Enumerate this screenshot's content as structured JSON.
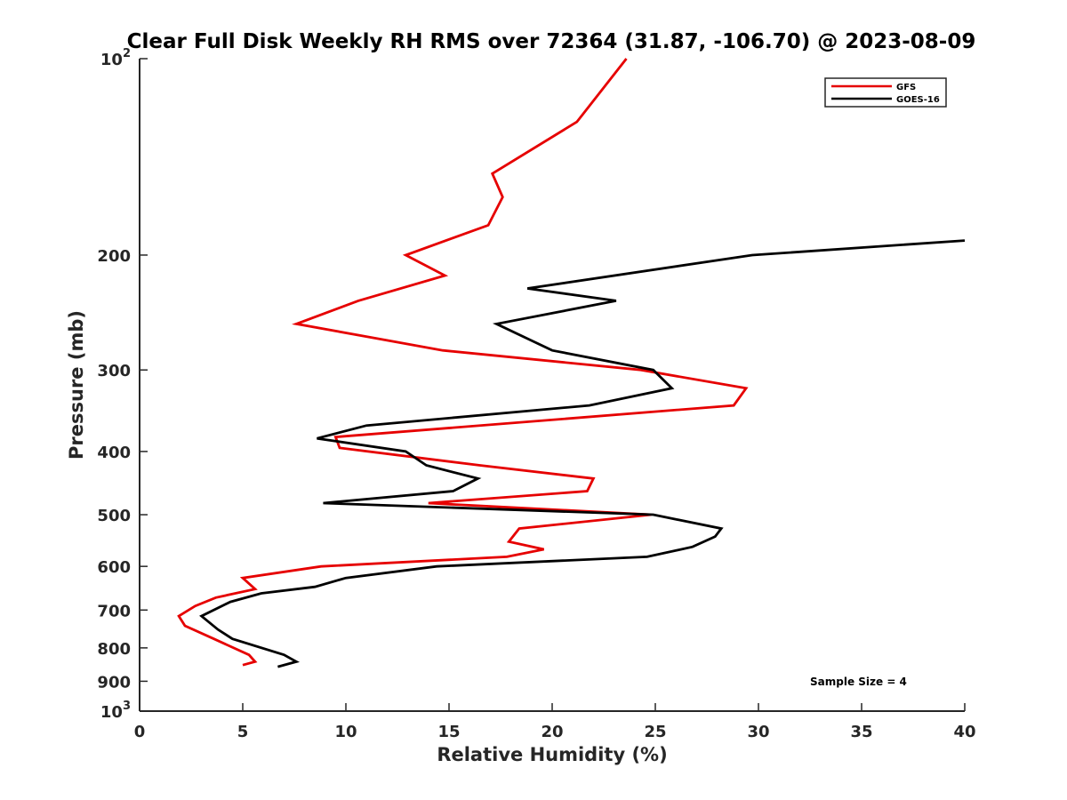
{
  "chart_data": {
    "type": "line",
    "title": "Clear Full Disk Weekly RH RMS over 72364 (31.87, -106.70) @ 2023-08-09",
    "xlabel": "Relative Humidity (%)",
    "ylabel": "Pressure (mb)",
    "xlim": [
      0,
      40
    ],
    "ylim": [
      100,
      1000
    ],
    "y_scale": "log",
    "y_reversed": true,
    "grid": false,
    "legend_position": "top-right",
    "x_ticks": [
      0,
      5,
      10,
      15,
      20,
      25,
      30,
      35,
      40
    ],
    "x_tick_labels": [
      "0",
      "5",
      "10",
      "15",
      "20",
      "25",
      "30",
      "35",
      "40"
    ],
    "y_ticks": [
      100,
      200,
      300,
      400,
      500,
      600,
      700,
      800,
      900,
      1000
    ],
    "y_tick_labels": [
      {
        "base": "10",
        "exp": "2"
      },
      {
        "base": "200",
        "exp": ""
      },
      {
        "base": "300",
        "exp": ""
      },
      {
        "base": "400",
        "exp": ""
      },
      {
        "base": "500",
        "exp": ""
      },
      {
        "base": "600",
        "exp": ""
      },
      {
        "base": "700",
        "exp": ""
      },
      {
        "base": "800",
        "exp": ""
      },
      {
        "base": "900",
        "exp": ""
      },
      {
        "base": "10",
        "exp": "3"
      }
    ],
    "annotation": "Sample Size = 4",
    "series": [
      {
        "name": "GFS",
        "color": "#e60000",
        "points": [
          [
            23.6,
            100
          ],
          [
            21.2,
            125
          ],
          [
            17.1,
            150
          ],
          [
            17.6,
            163
          ],
          [
            16.9,
            180
          ],
          [
            12.9,
            200
          ],
          [
            14.8,
            215
          ],
          [
            10.6,
            235
          ],
          [
            7.6,
            255
          ],
          [
            14.7,
            280
          ],
          [
            24.3,
            300
          ],
          [
            29.4,
            320
          ],
          [
            28.8,
            340
          ],
          [
            9.5,
            380
          ],
          [
            9.7,
            395
          ],
          [
            16.5,
            420
          ],
          [
            22.0,
            440
          ],
          [
            21.7,
            460
          ],
          [
            14.0,
            480
          ],
          [
            24.8,
            500
          ],
          [
            18.4,
            525
          ],
          [
            17.9,
            550
          ],
          [
            19.6,
            565
          ],
          [
            17.8,
            580
          ],
          [
            8.8,
            600
          ],
          [
            5.0,
            625
          ],
          [
            5.6,
            650
          ],
          [
            3.7,
            670
          ],
          [
            2.7,
            690
          ],
          [
            1.9,
            715
          ],
          [
            2.2,
            740
          ],
          [
            3.6,
            775
          ],
          [
            5.3,
            820
          ],
          [
            5.6,
            840
          ],
          [
            5.0,
            850
          ]
        ]
      },
      {
        "name": "GOES-16",
        "color": "#000000",
        "points": [
          [
            40.0,
            190
          ],
          [
            29.7,
            200
          ],
          [
            18.8,
            225
          ],
          [
            23.1,
            235
          ],
          [
            17.3,
            255
          ],
          [
            20.0,
            280
          ],
          [
            24.9,
            300
          ],
          [
            25.8,
            320
          ],
          [
            21.8,
            340
          ],
          [
            11.0,
            365
          ],
          [
            8.6,
            382
          ],
          [
            12.9,
            400
          ],
          [
            13.9,
            420
          ],
          [
            16.4,
            440
          ],
          [
            15.2,
            460
          ],
          [
            8.9,
            480
          ],
          [
            24.9,
            500
          ],
          [
            28.2,
            525
          ],
          [
            27.9,
            540
          ],
          [
            26.8,
            560
          ],
          [
            24.6,
            580
          ],
          [
            14.4,
            600
          ],
          [
            10.0,
            625
          ],
          [
            8.5,
            645
          ],
          [
            5.9,
            660
          ],
          [
            4.4,
            680
          ],
          [
            3.0,
            715
          ],
          [
            3.8,
            750
          ],
          [
            4.5,
            775
          ],
          [
            7.0,
            820
          ],
          [
            7.6,
            840
          ],
          [
            6.7,
            855
          ]
        ]
      }
    ]
  }
}
